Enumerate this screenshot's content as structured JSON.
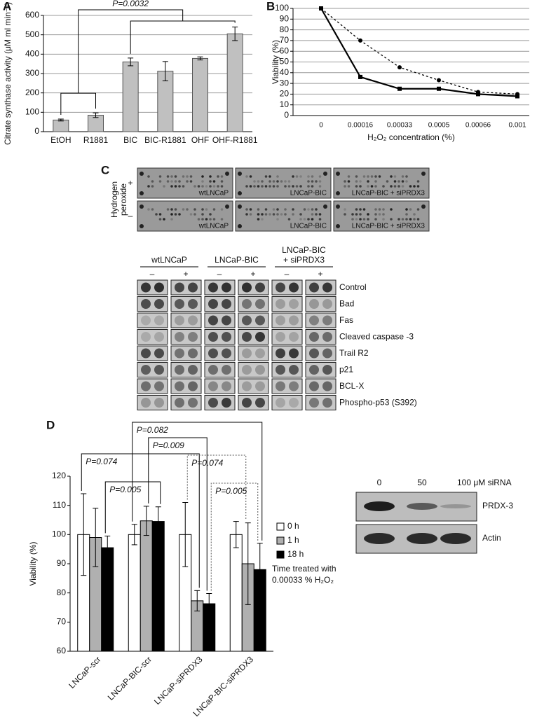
{
  "chart_data": [
    {
      "type": "bar",
      "panel": "A",
      "ylabel": "Citrate synthase activity (μM ml min⁻¹)",
      "categories": [
        "EtOH",
        "R1881",
        "BIC",
        "BIC-R1881",
        "OHF",
        "OHF-R1881"
      ],
      "values": [
        60,
        85,
        360,
        312,
        378,
        505
      ],
      "errors": [
        5,
        12,
        20,
        50,
        8,
        35
      ],
      "color": "#c0c0c0",
      "ylim": [
        0,
        600
      ],
      "yticks": [
        0,
        100,
        200,
        300,
        400,
        500,
        600
      ],
      "grid": true,
      "annotations": [
        "P=0.0032"
      ]
    },
    {
      "type": "line",
      "panel": "B",
      "ylabel": "Viability (%)",
      "xlabel": "H₂O₂ concentration (%)",
      "categories": [
        "0",
        "0.00016",
        "0.00033",
        "0.0005",
        "0.00066",
        "0.001"
      ],
      "series": [
        {
          "color": "#000000",
          "dashed": false,
          "marker": "square",
          "values": [
            100,
            36,
            25,
            25,
            20,
            18
          ]
        },
        {
          "color": "#000000",
          "dashed": true,
          "marker": "circle",
          "values": [
            100,
            70,
            45,
            33,
            22,
            20
          ]
        }
      ],
      "ylim": [
        0,
        100
      ],
      "yticks": [
        0,
        10,
        20,
        30,
        40,
        50,
        60,
        70,
        80,
        90,
        100
      ],
      "grid": true
    },
    {
      "type": "grouped_bar",
      "panel": "D",
      "ylabel": "Viability (%)",
      "categories": [
        "LNCaP-scr",
        "LNCaP-BIC-scr",
        "LNCaP-siPRDX3",
        "LNCaP-BIC-siPRDX3"
      ],
      "series": [
        {
          "name": "0 h",
          "color": "#ffffff",
          "values": [
            100,
            100,
            100,
            100
          ],
          "errors": [
            14,
            3.5,
            11,
            4.5
          ]
        },
        {
          "name": "1 h",
          "color": "#b0b0b0",
          "values": [
            99,
            104.7,
            77.3,
            90
          ],
          "errors": [
            10,
            5,
            3.5,
            14
          ]
        },
        {
          "name": "18 h",
          "color": "#000000",
          "values": [
            95.5,
            104.5,
            76.3,
            88
          ],
          "errors": [
            4,
            5,
            3.5,
            9
          ]
        }
      ],
      "ylim": [
        60,
        120
      ],
      "yticks": [
        60,
        70,
        80,
        90,
        100,
        110,
        120
      ],
      "grid": false,
      "annotations": [
        "P=0.082",
        "P=0.009",
        "P=0.074",
        "P=0.074",
        "P=0.005",
        "P=0.005"
      ],
      "legend_note": [
        "Time treated with",
        "0.00033 % H₂O₂"
      ]
    }
  ],
  "blot_c": {
    "panel": "C",
    "side_label": [
      "Hydrogen",
      "peroxide"
    ],
    "top_rows": [
      "+",
      "–"
    ],
    "top_labels": [
      "wtLNCaP",
      "LNCaP-BIC",
      "LNCaP-BIC + siPRDX3"
    ],
    "groups": [
      [
        "wtLNCaP"
      ],
      [
        "LNCaP-BIC"
      ],
      [
        "LNCaP-BIC",
        "+ siPRDX3"
      ]
    ],
    "treatments": [
      "–",
      "+"
    ],
    "proteins": [
      "Control",
      "Bad",
      "Fas",
      "Cleaved caspase -3",
      "Trail R2",
      "p21",
      "BCL-X",
      "Phospho-p53 (S392)"
    ]
  },
  "blot_d": {
    "lanes": [
      "0",
      "50",
      "100 μM siRNA"
    ],
    "proteins": [
      "PRDX-3",
      "Actin"
    ]
  }
}
